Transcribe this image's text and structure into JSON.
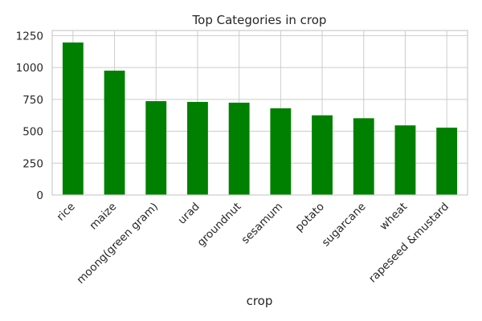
{
  "chart_data": {
    "type": "bar",
    "title": "Top Categories in crop",
    "xlabel": "crop",
    "ylabel": "",
    "categories": [
      "rice",
      "maize",
      "moong(green gram)",
      "urad",
      "groundnut",
      "sesamum",
      "potato",
      "sugarcane",
      "wheat",
      "rapeseed &mustard"
    ],
    "values": [
      1196,
      975,
      736,
      730,
      724,
      680,
      625,
      602,
      546,
      528
    ],
    "ylim": [
      0,
      1290
    ],
    "yticks": [
      0,
      250,
      500,
      750,
      1000,
      1250
    ],
    "ytick_labels": [
      "0",
      "250",
      "500",
      "750",
      "1000",
      "1250"
    ],
    "grid": true,
    "bar_color": "#008000"
  }
}
